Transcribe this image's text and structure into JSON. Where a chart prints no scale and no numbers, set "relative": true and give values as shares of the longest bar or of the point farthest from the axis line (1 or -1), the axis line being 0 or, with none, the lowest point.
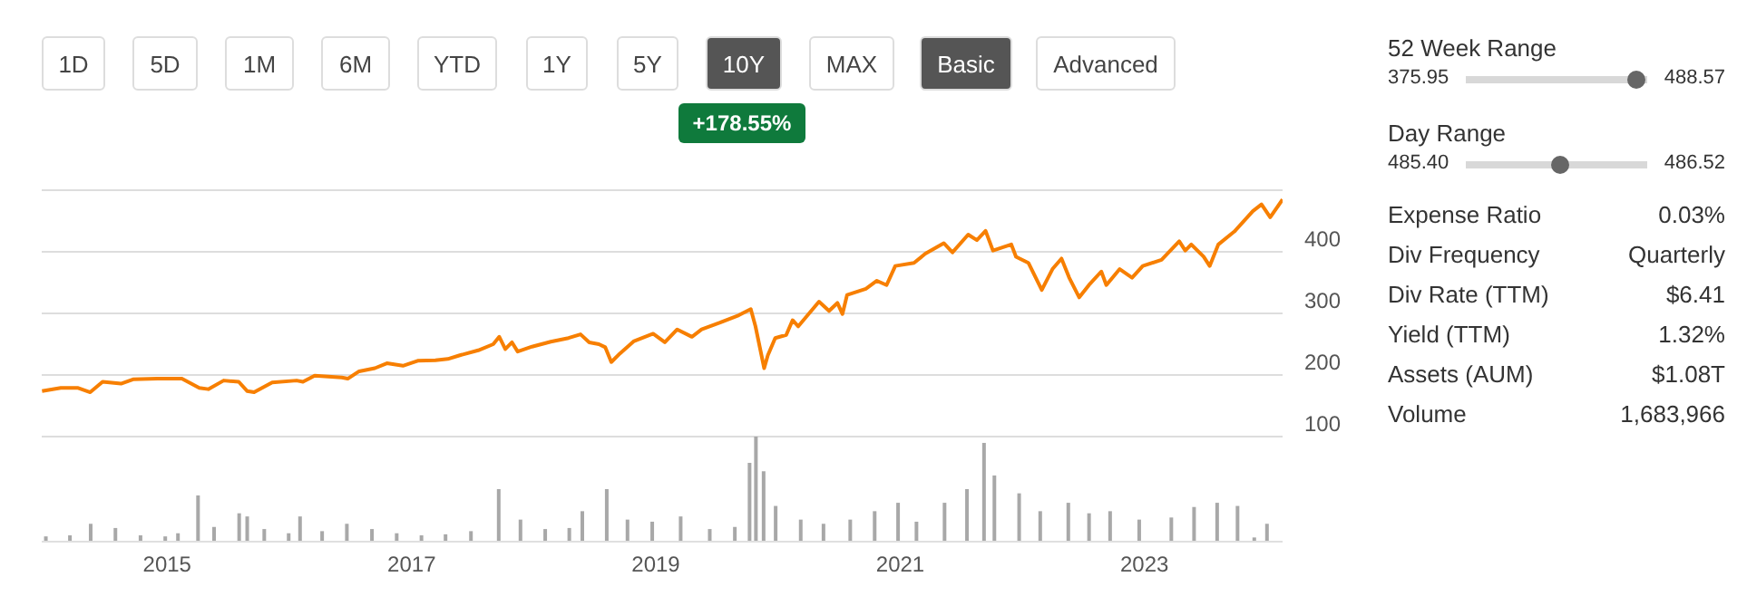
{
  "chart_data": [
    {
      "type": "line",
      "annotations": [
        "1D",
        "5D",
        "1M",
        "6M",
        "YTD",
        "1Y",
        "5Y",
        "10Y",
        "MAX",
        "Basic",
        "Advanced",
        "+178.55%"
      ],
      "xlim": [
        "2013-12-22",
        "2024-02-18"
      ],
      "ylim": [
        100,
        500
      ],
      "yticks": [
        {
          "value": 500,
          "label": null
        },
        400,
        300,
        200,
        100
      ],
      "grid": "y",
      "tick_labels": "y",
      "marker": "none",
      "line_style": "solid",
      "series": [
        {
          "color": "#f77f00",
          "x": [
            "2013-12-23",
            "2014-02-17",
            "2014-04-10",
            "2014-05-16",
            "2014-06-22",
            "2014-08-16",
            "2014-09-21",
            "2014-12-03",
            "2015-02-14",
            "2015-04-07",
            "2015-05-04",
            "2015-06-19",
            "2015-08-03",
            "2015-08-28",
            "2015-09-18",
            "2015-11-11",
            "2016-01-23",
            "2016-02-11",
            "2016-03-17",
            "2016-06-06",
            "2016-06-24",
            "2016-07-28",
            "2016-09-13",
            "2016-10-19",
            "2016-12-06",
            "2017-01-19",
            "2017-03-13",
            "2017-04-19",
            "2017-05-25",
            "2017-07-19",
            "2017-09-02",
            "2017-09-20",
            "2017-10-08",
            "2017-10-28",
            "2017-11-14",
            "2017-12-27",
            "2018-02-21",
            "2018-04-15",
            "2018-05-21",
            "2018-06-16",
            "2018-07-15",
            "2018-08-03",
            "2018-08-21",
            "2018-09-16",
            "2018-10-28",
            "2018-12-24",
            "2019-01-28",
            "2019-03-06",
            "2019-04-19",
            "2019-05-18",
            "2019-07-12",
            "2019-09-06",
            "2019-10-12",
            "2019-10-26",
            "2019-11-21",
            "2019-12-02",
            "2019-12-24",
            "2020-01-26",
            "2020-02-14",
            "2020-03-02",
            "2020-05-03",
            "2020-06-02",
            "2020-06-27",
            "2020-07-12",
            "2020-07-26",
            "2020-09-20",
            "2020-10-23",
            "2020-11-21",
            "2020-12-17",
            "2021-02-11",
            "2021-03-17",
            "2021-05-11",
            "2021-06-06",
            "2021-07-23",
            "2021-08-18",
            "2021-09-13",
            "2021-10-05",
            "2021-11-29",
            "2021-12-13",
            "2022-01-19",
            "2022-02-28",
            "2022-04-01",
            "2022-04-28",
            "2022-05-21",
            "2022-06-20",
            "2022-07-19",
            "2022-08-25",
            "2022-09-09",
            "2022-10-19",
            "2022-11-25",
            "2022-12-27",
            "2023-02-21",
            "2023-04-15",
            "2023-05-03",
            "2023-05-21",
            "2023-06-27",
            "2023-07-15",
            "2023-08-10",
            "2023-09-27",
            "2023-11-21",
            "2023-12-17",
            "2024-01-12",
            "2024-02-18"
          ],
          "values": [
            174,
            179,
            179,
            172,
            189,
            186,
            193,
            194,
            194,
            179,
            177,
            191,
            189,
            174,
            172,
            188,
            191,
            189,
            199,
            196,
            194,
            206,
            211,
            219,
            215,
            223,
            224,
            226,
            232,
            240,
            250,
            262,
            242,
            253,
            238,
            246,
            254,
            260,
            266,
            253,
            250,
            245,
            221,
            235,
            255,
            267,
            253,
            274,
            262,
            274,
            285,
            297,
            307,
            279,
            211,
            232,
            260,
            265,
            289,
            279,
            319,
            304,
            317,
            299,
            330,
            340,
            353,
            346,
            377,
            382,
            397,
            414,
            399,
            428,
            419,
            434,
            402,
            412,
            392,
            382,
            338,
            372,
            389,
            358,
            326,
            346,
            368,
            346,
            372,
            358,
            377,
            387,
            417,
            402,
            412,
            392,
            377,
            412,
            433,
            466,
            477,
            456,
            485
          ]
        }
      ]
    },
    {
      "type": "bar",
      "relative": true,
      "tick_labels": "x",
      "xlim": [
        "2013-12-22",
        "2024-02-18"
      ],
      "xticks": [
        "2015",
        "2017",
        "2019",
        "2021",
        "2023"
      ],
      "x": [
        "2014-01-02",
        "2014-03-15",
        "2014-05-16",
        "2014-07-29",
        "2014-10-12",
        "2014-12-25",
        "2015-02-01",
        "2015-04-02",
        "2015-05-20",
        "2015-08-03",
        "2015-08-27",
        "2015-10-17",
        "2015-12-29",
        "2016-02-01",
        "2016-04-07",
        "2016-06-20",
        "2016-09-03",
        "2016-11-16",
        "2017-01-29",
        "2017-04-11",
        "2017-06-26",
        "2017-09-17",
        "2017-11-21",
        "2018-02-03",
        "2018-04-16",
        "2018-05-25",
        "2018-08-06",
        "2018-10-07",
        "2018-12-20",
        "2019-03-15",
        "2019-06-10",
        "2019-08-24",
        "2019-10-07",
        "2019-10-26",
        "2019-11-18",
        "2019-12-24",
        "2020-03-08",
        "2020-05-15",
        "2020-08-03",
        "2020-10-15",
        "2020-12-24",
        "2021-02-17",
        "2021-05-12",
        "2021-07-18",
        "2021-09-07",
        "2021-10-08",
        "2021-12-21",
        "2022-02-22",
        "2022-05-17",
        "2022-07-18",
        "2022-09-19",
        "2022-12-15",
        "2023-03-21",
        "2023-05-28",
        "2023-08-05",
        "2023-10-05",
        "2023-11-24",
        "2024-01-01"
      ],
      "series": [
        {
          "color": "#a8a8a8",
          "values": [
            0.05,
            0.06,
            0.17,
            0.13,
            0.06,
            0.05,
            0.08,
            0.44,
            0.14,
            0.27,
            0.24,
            0.12,
            0.08,
            0.24,
            0.1,
            0.17,
            0.12,
            0.08,
            0.06,
            0.07,
            0.1,
            0.5,
            0.21,
            0.12,
            0.13,
            0.29,
            0.5,
            0.21,
            0.19,
            0.24,
            0.12,
            0.14,
            0.75,
            1,
            0.67,
            0.34,
            0.21,
            0.17,
            0.21,
            0.29,
            0.37,
            0.19,
            0.37,
            0.5,
            0.94,
            0.63,
            0.46,
            0.29,
            0.37,
            0.27,
            0.29,
            0.21,
            0.23,
            0.33,
            0.37,
            0.34,
            0.04,
            0.17
          ]
        }
      ]
    },
    {
      "type": "other",
      "annotations": [
        "52 Week Range",
        "375.95",
        "488.57",
        "Day Range",
        "485.40",
        "486.52",
        "Expense Ratio",
        "0.03%",
        "Div Frequency",
        "Quarterly",
        "Div Rate (TTM)",
        "$6.41",
        "Yield (TTM)",
        "1.32%",
        "Assets (AUM)",
        "$1.08T",
        "Volume",
        "1,683,966"
      ]
    }
  ]
}
